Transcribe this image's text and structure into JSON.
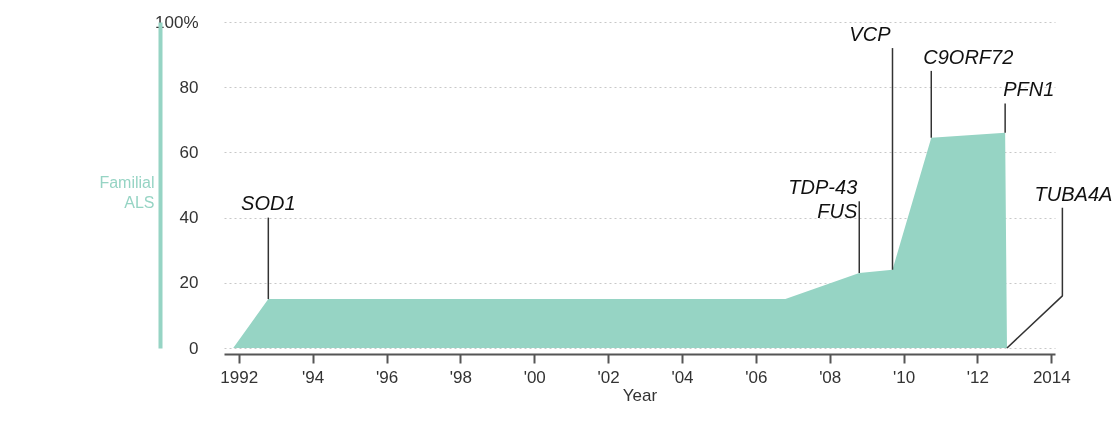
{
  "chart_data": {
    "type": "area",
    "xlabel": "Year",
    "ylabel": "Familial ALS",
    "x": [
      1991.85,
      1992.8,
      2006.8,
      2008.8,
      2009.7,
      2010.75,
      2012.75,
      2012.8
    ],
    "series": [
      {
        "color": "#96d4c4",
        "values": [
          0,
          15,
          15,
          23,
          24,
          64.5,
          66,
          0
        ]
      }
    ],
    "xlim": [
      1991.6,
      2014.1
    ],
    "ylim": [
      0,
      100
    ],
    "xticks": [
      1992,
      {
        "value": 1994,
        "label": "'94"
      },
      {
        "value": 1996,
        "label": "'96"
      },
      {
        "value": 1998,
        "label": "'98"
      },
      {
        "value": 2000,
        "label": "'00"
      },
      {
        "value": 2002,
        "label": "'02"
      },
      {
        "value": 2004,
        "label": "'04"
      },
      {
        "value": 2006,
        "label": "'06"
      },
      {
        "value": 2008,
        "label": "'08"
      },
      {
        "value": 2010,
        "label": "'10"
      },
      {
        "value": 2012,
        "label": "'12"
      },
      2014
    ],
    "yticks": [
      0,
      20,
      40,
      60,
      80,
      {
        "value": 100,
        "label": "100%"
      }
    ],
    "grid": "y",
    "annotations": [
      {
        "text": "SOD1",
        "x": 1992.8,
        "y": 15
      },
      {
        "text": "TDP-43\nFUS",
        "x": 2008.8,
        "y": 23
      },
      {
        "text": "VCP",
        "x": 2009.7,
        "y": 24
      },
      {
        "text": "C9ORF72",
        "x": 2010.75,
        "y": 64.5
      },
      {
        "text": "PFN1",
        "x": 2012.75,
        "y": 66
      },
      {
        "text": "TUBA4A",
        "x": 2012.8,
        "y": 0
      }
    ]
  }
}
